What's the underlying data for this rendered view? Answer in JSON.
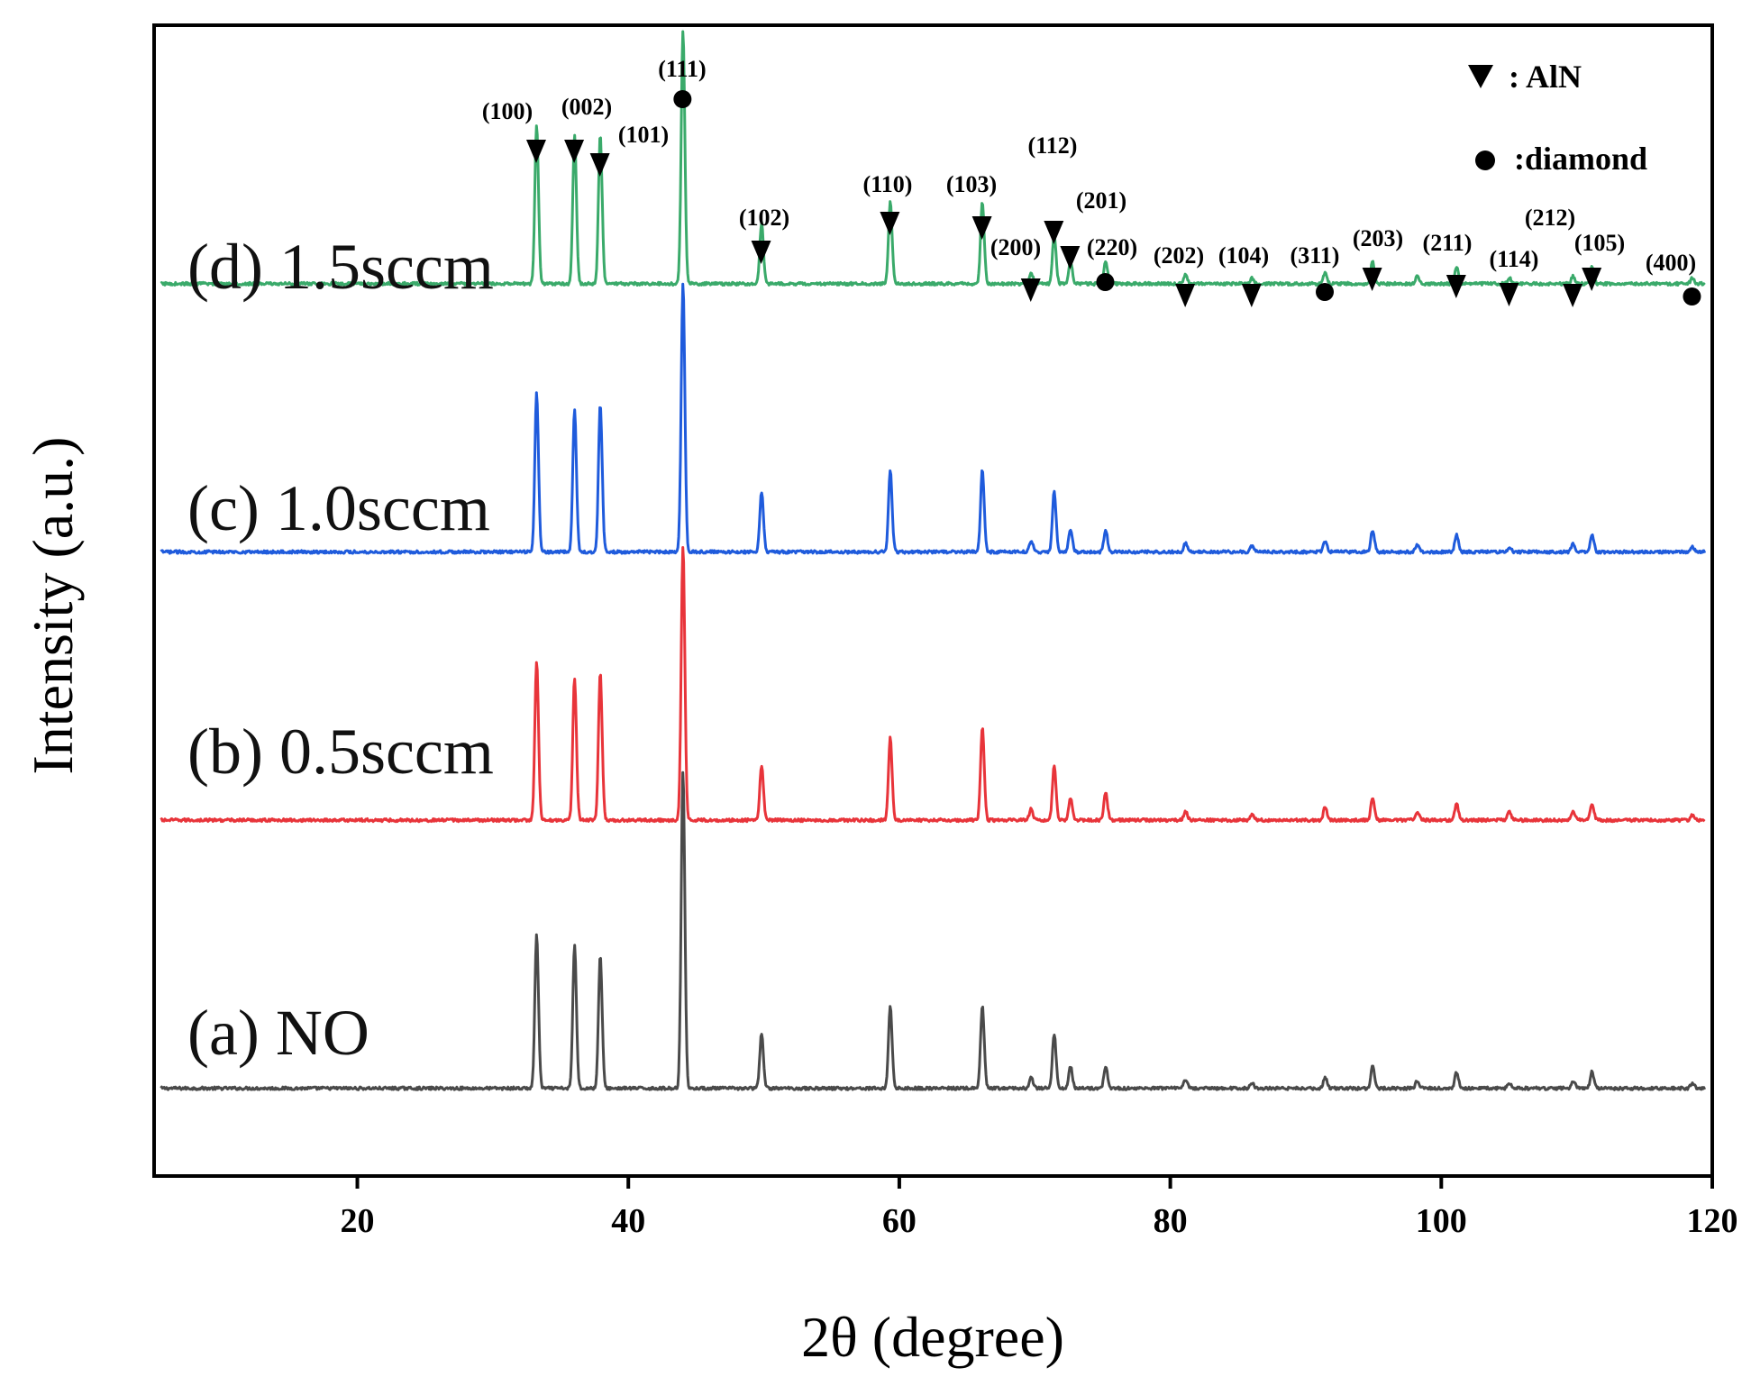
{
  "chart_data": {
    "type": "line",
    "title": "",
    "xlabel": "2θ (degree)",
    "ylabel": "Intensity (a.u.)",
    "xlim": [
      5,
      120
    ],
    "xticks": [
      20,
      40,
      60,
      80,
      100,
      120
    ],
    "grid": false,
    "legend": {
      "placement": "top-right",
      "entries": [
        {
          "marker": "triangle",
          "label": ": AlN"
        },
        {
          "marker": "circle",
          "label": ":diamond"
        }
      ]
    },
    "peak_positions": [
      33.2,
      36.0,
      37.9,
      44.0,
      49.8,
      59.3,
      66.1,
      69.7,
      71.4,
      72.6,
      75.2,
      81.1,
      86.0,
      91.4,
      94.9,
      98.2,
      101.1,
      105.0,
      109.7,
      111.1,
      118.5
    ],
    "series": [
      {
        "name": "(a) NO",
        "color": "#4a4a4a",
        "baseline": 0,
        "peak_heights": [
          14,
          13,
          12,
          29,
          5,
          7.5,
          7.5,
          1,
          5,
          2,
          2,
          0.8,
          0.5,
          1,
          2,
          0.7,
          1.5,
          0.5,
          0.7,
          1.5,
          0.5
        ]
      },
      {
        "name": "(b) 0.5sccm",
        "color": "#e8343a",
        "baseline": 32,
        "peak_heights": [
          14.5,
          13,
          13.5,
          25,
          5,
          7.5,
          8.5,
          1,
          5,
          2,
          2.5,
          0.8,
          0.5,
          1.2,
          2,
          0.7,
          1.5,
          0.8,
          0.7,
          1.5,
          0.5
        ]
      },
      {
        "name": "(c) 1.0sccm",
        "color": "#1f5bdc",
        "baseline": 64,
        "peak_heights": [
          14.5,
          13,
          13.5,
          24.5,
          5.5,
          7.5,
          7.5,
          1,
          5.5,
          2,
          2,
          0.8,
          0.5,
          1,
          2,
          0.7,
          1.5,
          0.5,
          0.7,
          1.5,
          0.5
        ]
      },
      {
        "name": "(d) 1.5sccm",
        "color": "#3aaa6a",
        "baseline": 96,
        "peak_heights": [
          14.5,
          13.5,
          13.5,
          23,
          5.5,
          7.5,
          7.5,
          1,
          4.5,
          2,
          2,
          0.8,
          0.5,
          1,
          2,
          0.7,
          1.5,
          0.5,
          0.7,
          1.5,
          0.5
        ]
      }
    ],
    "annotations": [
      {
        "label": "(100)",
        "x": 33.2,
        "marker": "triangle"
      },
      {
        "label": "(002)",
        "x": 36.0,
        "marker": "triangle"
      },
      {
        "label": "(101)",
        "x": 37.9,
        "marker": "triangle"
      },
      {
        "label": "(111)",
        "x": 44.0,
        "marker": "circle"
      },
      {
        "label": "(102)",
        "x": 49.8,
        "marker": "triangle"
      },
      {
        "label": "(110)",
        "x": 59.3,
        "marker": "triangle"
      },
      {
        "label": "(103)",
        "x": 66.1,
        "marker": "triangle"
      },
      {
        "label": "(200)",
        "x": 69.7,
        "marker": "triangle"
      },
      {
        "label": "(112)",
        "x": 71.4,
        "marker": "triangle"
      },
      {
        "label": "(201)",
        "x": 72.6,
        "marker": "triangle"
      },
      {
        "label": "(220)",
        "x": 75.2,
        "marker": "circle"
      },
      {
        "label": "(202)",
        "x": 81.1,
        "marker": "triangle"
      },
      {
        "label": "(104)",
        "x": 86.0,
        "marker": "triangle"
      },
      {
        "label": "(311)",
        "x": 91.4,
        "marker": "circle"
      },
      {
        "label": "(203)",
        "x": 94.9,
        "marker": "triangle"
      },
      {
        "label": "(211)",
        "x": 101.1,
        "marker": "triangle"
      },
      {
        "label": "(114)",
        "x": 105.0,
        "marker": "triangle"
      },
      {
        "label": "(212)",
        "x": 109.7,
        "marker": "triangle"
      },
      {
        "label": "(105)",
        "x": 111.1,
        "marker": "triangle"
      },
      {
        "label": "(400)",
        "x": 118.5,
        "marker": "circle"
      }
    ]
  }
}
